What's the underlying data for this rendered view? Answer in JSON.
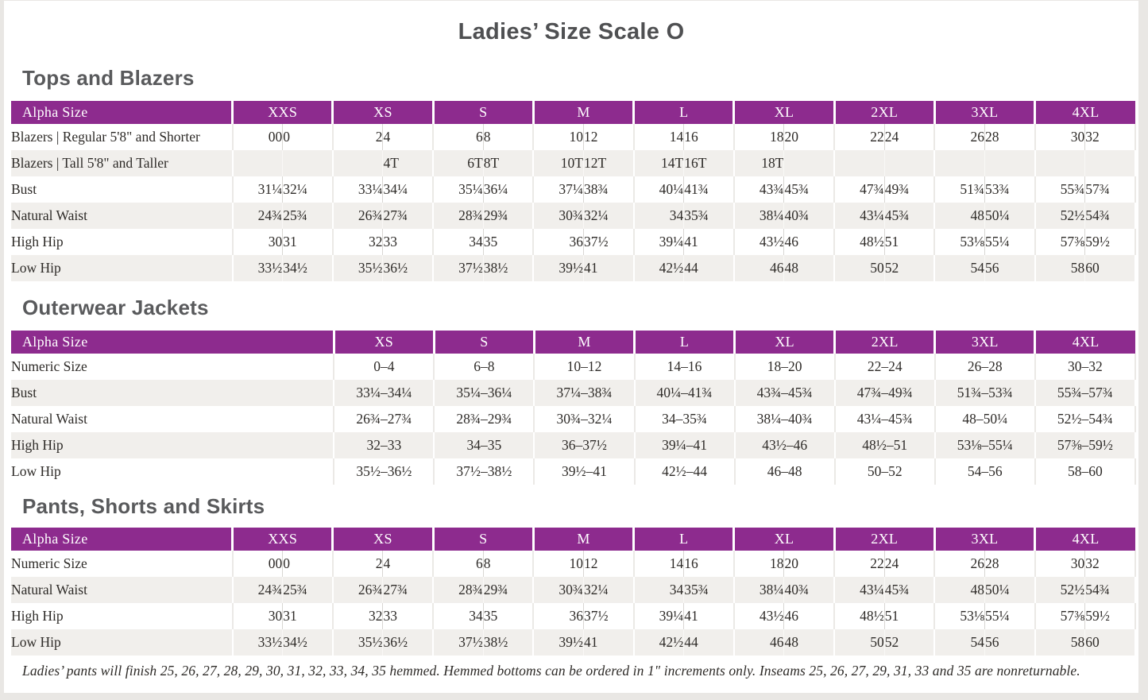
{
  "title": "Ladies’ Size Scale O",
  "colors": {
    "header_purple": "#8d2b8e",
    "row_stripe": "#f1efec",
    "heading_gray": "#595a5c",
    "text": "#2e2b28",
    "page_edge": "#e9e7e4"
  },
  "sections": [
    {
      "heading": "Tops and Blazers",
      "table": {
        "label_header": "Alpha Size",
        "col_groups": [
          "XXS",
          "XS",
          "S",
          "M",
          "L",
          "XL",
          "2XL",
          "3XL",
          "4XL"
        ],
        "paired": true,
        "rows": [
          {
            "label": "Blazers | Regular 5'8\" and Shorter",
            "values": [
              [
                "00",
                "0"
              ],
              [
                "2",
                "4"
              ],
              [
                "6",
                "8"
              ],
              [
                "10",
                "12"
              ],
              [
                "14",
                "16"
              ],
              [
                "18",
                "20"
              ],
              [
                "22",
                "24"
              ],
              [
                "26",
                "28"
              ],
              [
                "30",
                "32"
              ]
            ]
          },
          {
            "label": "Blazers | Tall 5'8\" and Taller",
            "values": [
              [
                "",
                ""
              ],
              [
                "",
                "4T"
              ],
              [
                "6T",
                "8T"
              ],
              [
                "10T",
                "12T"
              ],
              [
                "14T",
                "16T"
              ],
              [
                "18T",
                ""
              ],
              [
                "",
                ""
              ],
              [
                "",
                ""
              ],
              [
                "",
                ""
              ]
            ]
          },
          {
            "label": "Bust",
            "values": [
              [
                "31¼",
                "32¼"
              ],
              [
                "33¼",
                "34¼"
              ],
              [
                "35¼",
                "36¼"
              ],
              [
                "37¼",
                "38¾"
              ],
              [
                "40¼",
                "41¾"
              ],
              [
                "43¾",
                "45¾"
              ],
              [
                "47¾",
                "49¾"
              ],
              [
                "51¾",
                "53¾"
              ],
              [
                "55¾",
                "57¾"
              ]
            ]
          },
          {
            "label": "Natural Waist",
            "values": [
              [
                "24¾",
                "25¾"
              ],
              [
                "26¾",
                "27¾"
              ],
              [
                "28¾",
                "29¾"
              ],
              [
                "30¾",
                "32¼"
              ],
              [
                "34",
                "35¾"
              ],
              [
                "38¼",
                "40¾"
              ],
              [
                "43¼",
                "45¾"
              ],
              [
                "48",
                "50¼"
              ],
              [
                "52½",
                "54¾"
              ]
            ]
          },
          {
            "label": "High Hip",
            "values": [
              [
                "30",
                "31"
              ],
              [
                "32",
                "33"
              ],
              [
                "34",
                "35"
              ],
              [
                "36",
                "37½"
              ],
              [
                "39¼",
                "41"
              ],
              [
                "43½",
                "46"
              ],
              [
                "48½",
                "51"
              ],
              [
                "53⅛",
                "55¼"
              ],
              [
                "57⅜",
                "59½"
              ]
            ]
          },
          {
            "label": "Low Hip",
            "values": [
              [
                "33½",
                "34½"
              ],
              [
                "35½",
                "36½"
              ],
              [
                "37½",
                "38½"
              ],
              [
                "39½",
                "41"
              ],
              [
                "42½",
                "44"
              ],
              [
                "46",
                "48"
              ],
              [
                "50",
                "52"
              ],
              [
                "54",
                "56"
              ],
              [
                "58",
                "60"
              ]
            ]
          }
        ]
      }
    },
    {
      "heading": "Outerwear Jackets",
      "table": {
        "label_header": "Alpha Size",
        "col_groups": [
          "XS",
          "S",
          "M",
          "L",
          "XL",
          "2XL",
          "3XL",
          "4XL"
        ],
        "paired": false,
        "rows": [
          {
            "label": "Numeric Size",
            "values": [
              "0–4",
              "6–8",
              "10–12",
              "14–16",
              "18–20",
              "22–24",
              "26–28",
              "30–32"
            ]
          },
          {
            "label": "Bust",
            "values": [
              "33¼–34¼",
              "35¼–36¼",
              "37¼–38¾",
              "40¼–41¾",
              "43¾–45¾",
              "47¾–49¾",
              "51¾–53¾",
              "55¾–57¾"
            ]
          },
          {
            "label": "Natural Waist",
            "values": [
              "26¾–27¾",
              "28¾–29¾",
              "30¾–32¼",
              "34–35¾",
              "38¼–40¾",
              "43¼–45¾",
              "48–50¼",
              "52½–54¾"
            ]
          },
          {
            "label": "High Hip",
            "values": [
              "32–33",
              "34–35",
              "36–37½",
              "39¼–41",
              "43½–46",
              "48½–51",
              "53⅛–55¼",
              "57⅜–59½"
            ]
          },
          {
            "label": "Low Hip",
            "values": [
              "35½–36½",
              "37½–38½",
              "39½–41",
              "42½–44",
              "46–48",
              "50–52",
              "54–56",
              "58–60"
            ]
          }
        ]
      }
    },
    {
      "heading": "Pants, Shorts and Skirts",
      "table": {
        "label_header": "Alpha Size",
        "col_groups": [
          "XXS",
          "XS",
          "S",
          "M",
          "L",
          "XL",
          "2XL",
          "3XL",
          "4XL"
        ],
        "paired": true,
        "rows": [
          {
            "label": "Numeric Size",
            "values": [
              [
                "00",
                "0"
              ],
              [
                "2",
                "4"
              ],
              [
                "6",
                "8"
              ],
              [
                "10",
                "12"
              ],
              [
                "14",
                "16"
              ],
              [
                "18",
                "20"
              ],
              [
                "22",
                "24"
              ],
              [
                "26",
                "28"
              ],
              [
                "30",
                "32"
              ]
            ]
          },
          {
            "label": "Natural Waist",
            "values": [
              [
                "24¾",
                "25¾"
              ],
              [
                "26¾",
                "27¾"
              ],
              [
                "28¾",
                "29¾"
              ],
              [
                "30¾",
                "32¼"
              ],
              [
                "34",
                "35¾"
              ],
              [
                "38¼",
                "40¾"
              ],
              [
                "43¼",
                "45¾"
              ],
              [
                "48",
                "50¼"
              ],
              [
                "52½",
                "54¾"
              ]
            ]
          },
          {
            "label": "High Hip",
            "values": [
              [
                "30",
                "31"
              ],
              [
                "32",
                "33"
              ],
              [
                "34",
                "35"
              ],
              [
                "36",
                "37½"
              ],
              [
                "39¼",
                "41"
              ],
              [
                "43½",
                "46"
              ],
              [
                "48½",
                "51"
              ],
              [
                "53⅛",
                "55¼"
              ],
              [
                "57⅜",
                "59½"
              ]
            ]
          },
          {
            "label": "Low Hip",
            "values": [
              [
                "33½",
                "34½"
              ],
              [
                "35½",
                "36½"
              ],
              [
                "37½",
                "38½"
              ],
              [
                "39½",
                "41"
              ],
              [
                "42½",
                "44"
              ],
              [
                "46",
                "48"
              ],
              [
                "50",
                "52"
              ],
              [
                "54",
                "56"
              ],
              [
                "58",
                "60"
              ]
            ]
          }
        ]
      },
      "footnote": "Ladies’ pants will finish 25, 26, 27, 28, 29, 30, 31, 32, 33, 34, 35 hemmed. Hemmed bottoms can be ordered in 1\" increments only. Inseams 25, 26, 27, 29, 31, 33 and 35 are nonreturnable."
    }
  ]
}
